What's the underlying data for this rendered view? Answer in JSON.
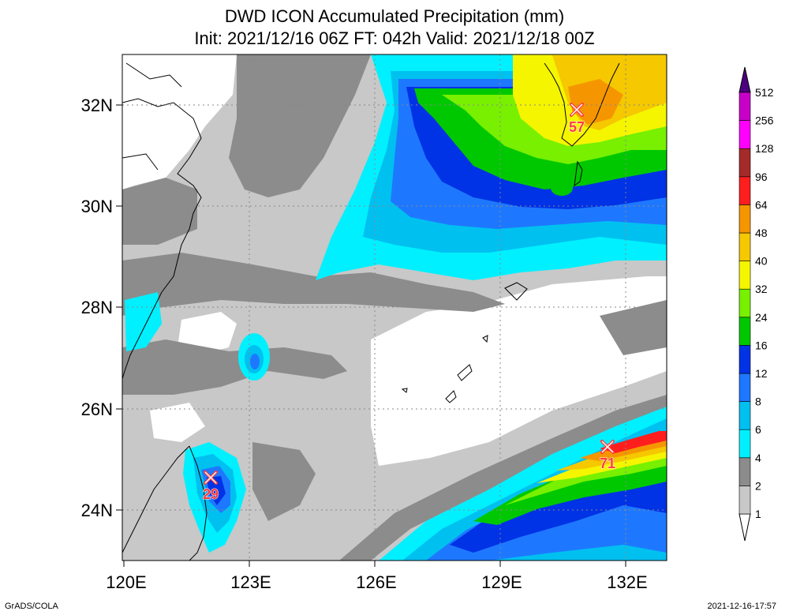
{
  "title": {
    "line1": "DWD ICON Accumulated Precipitation (mm)",
    "line2": "Init: 2021/12/16 06Z  FT: 042h  Valid: 2021/12/18 00Z"
  },
  "axes": {
    "lon_ticks": [
      "120E",
      "123E",
      "126E",
      "129E",
      "132E"
    ],
    "lat_ticks": [
      "32N",
      "30N",
      "28N",
      "26N",
      "24N"
    ]
  },
  "maxima": [
    {
      "value": "57",
      "lon": 130.8,
      "lat": 31.9
    },
    {
      "value": "71",
      "lon": 131.7,
      "lat": 25.3
    },
    {
      "value": "29",
      "lon": 122.0,
      "lat": 24.6
    }
  ],
  "colorbar": {
    "levels": [
      "1",
      "2",
      "4",
      "6",
      "8",
      "12",
      "16",
      "24",
      "32",
      "40",
      "48",
      "64",
      "96",
      "128",
      "256",
      "512"
    ],
    "colors": [
      "#c8c8c8",
      "#8c8c8c",
      "#00f0ff",
      "#00c0f0",
      "#1e78ff",
      "#0032e6",
      "#00c800",
      "#78f000",
      "#f5f500",
      "#f5c800",
      "#f59600",
      "#ff1e1e",
      "#a52a2a",
      "#ff00ff",
      "#c800c8",
      "#7800c8",
      "#4b0082"
    ]
  },
  "footer": {
    "left": "GrADS/COLA",
    "right": "2021-12-16-17:57"
  }
}
